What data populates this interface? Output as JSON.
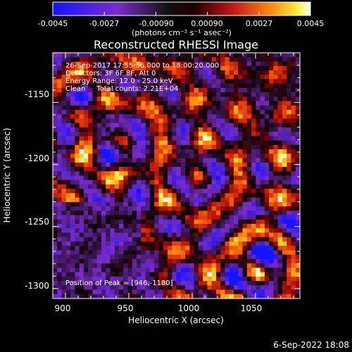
{
  "colorbar": {
    "ticks": [
      "-0.0045",
      "-0.0027",
      "-0.00090",
      "0.00090",
      "0.0027",
      "0.0045"
    ],
    "units": "(photons cm⁻² s⁻¹ asec⁻²)"
  },
  "chart_data": {
    "type": "heatmap",
    "title": "Reconstructed RHESSI Image",
    "xlabel": "Heliocentric X (arcsec)",
    "ylabel": "Heliocentric Y (arcsec)",
    "xlim": [
      890,
      1085
    ],
    "ylim": [
      -1308,
      -1110
    ],
    "xticks": [
      900,
      950,
      1000,
      1050
    ],
    "yticks": [
      -1150,
      -1200,
      -1250,
      -1300
    ],
    "clim": [
      -0.0045,
      0.0045
    ],
    "colormap": "RHESSI diverging: blue-purple-black-red-orange-yellow-white",
    "annotations": [
      "26-Sep-2017 17:55:56.000 to 18:00:20.000",
      "Detectors: 3F 6F 8F, Att 0",
      "Energy Range: 12.0 - 25.0 keV",
      "Clean     Total counts: 2.21E+04"
    ],
    "peak_label": "Position of Peak = [946,-1180]",
    "peak": [
      946,
      -1180
    ]
  },
  "footer": {
    "timestamp": "6-Sep-2022 18:08"
  }
}
